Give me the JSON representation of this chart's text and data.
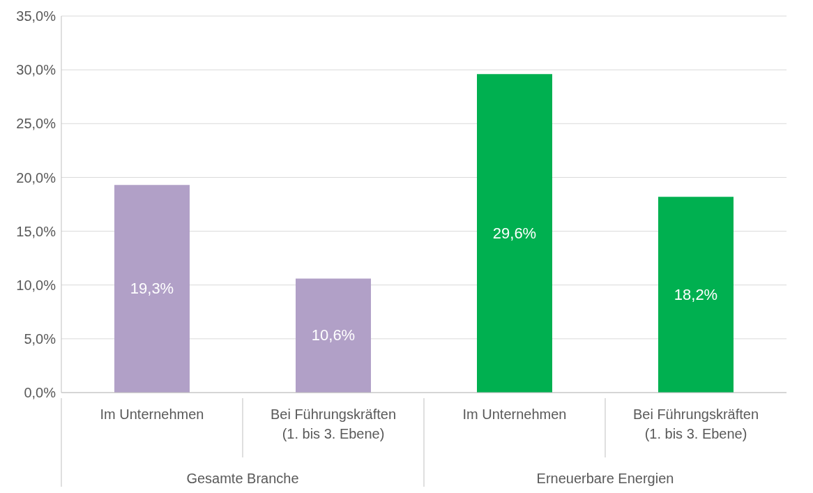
{
  "chart_data": {
    "type": "bar",
    "categories": [
      "Im Unternehmen",
      "Bei Führungskräften\n(1. bis 3. Ebene)",
      "Im Unternehmen",
      "Bei Führungskräften\n(1. bis 3. Ebene)"
    ],
    "values": [
      19.3,
      10.6,
      29.6,
      18.2
    ],
    "colors": [
      "#b1a0c7",
      "#b1a0c7",
      "#00b050",
      "#00b050"
    ],
    "value_labels": [
      "19,3%",
      "10,6%",
      "29,6%",
      "18,2%"
    ],
    "annotations": [
      "Gesamte Branche",
      "Erneuerbare Energien"
    ],
    "ylim": [
      0,
      35
    ],
    "yticks": [
      {
        "value": 0,
        "label": "0,0%"
      },
      {
        "value": 5,
        "label": "5,0%"
      },
      {
        "value": 10,
        "label": "10,0%"
      },
      {
        "value": 15,
        "label": "15,0%"
      },
      {
        "value": 20,
        "label": "20,0%"
      },
      {
        "value": 25,
        "label": "25,0%"
      },
      {
        "value": 30,
        "label": "30,0%"
      },
      {
        "value": 35,
        "label": "35,0%"
      }
    ],
    "grid": "y",
    "legend": false
  }
}
